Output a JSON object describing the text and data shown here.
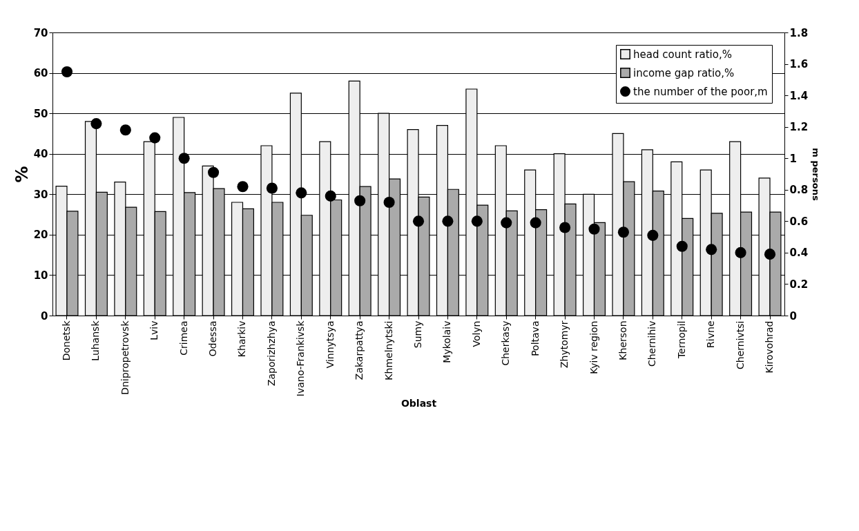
{
  "chart_data": {
    "type": "bar",
    "xlabel": "Oblast",
    "ylabel": "%",
    "y2label": "m persons",
    "categories": [
      "Donetsk",
      "Luhansk",
      "Dnipropetrovsk",
      "Lviv",
      "Crimea",
      "Odessa",
      "Kharkiv",
      "Zaporizhzhya",
      "Ivano-Frankivsk",
      "Vinnytsya",
      "Zakarpattya",
      "Khmelnytski",
      "Sumy",
      "Mykolaiv",
      "Volyn",
      "Cherkasy",
      "Poltava",
      "Zhytomyr",
      "Kyiv region",
      "Kherson",
      "Chernihiv",
      "Ternopil",
      "Rivne",
      "Chernivtsi",
      "Kirovohrad"
    ],
    "series": [
      {
        "name": "head count ratio,%",
        "color": "#eeeeee",
        "values": [
          32,
          48,
          33,
          43,
          49,
          37,
          28,
          42,
          55,
          43,
          58,
          50,
          46,
          47,
          56,
          42,
          36,
          40,
          30,
          45,
          41,
          38,
          36,
          43,
          34
        ]
      },
      {
        "name": "income gap ratio,%",
        "color": "#aaaaaa",
        "values": [
          25.8,
          30.5,
          26.8,
          25.7,
          30.4,
          31.4,
          26.4,
          28,
          24.8,
          28.6,
          31.9,
          33.8,
          29.3,
          31.2,
          27.3,
          25.9,
          26.2,
          27.6,
          23,
          33.1,
          30.8,
          24,
          25.3,
          25.6,
          25.6
        ]
      },
      {
        "name": "the number of the poor,m",
        "type": "scatter",
        "axis": "y2",
        "color": "#000000",
        "values": [
          1.55,
          1.22,
          1.18,
          1.13,
          1.0,
          0.91,
          0.82,
          0.81,
          0.78,
          0.76,
          0.73,
          0.72,
          0.6,
          0.6,
          0.6,
          0.59,
          0.59,
          0.56,
          0.55,
          0.53,
          0.51,
          0.44,
          0.42,
          0.4,
          0.39
        ]
      }
    ],
    "ylim": [
      0,
      70
    ],
    "yticks": [
      0,
      10,
      20,
      30,
      40,
      50,
      60,
      70
    ],
    "y2lim": [
      0,
      1.8
    ],
    "y2ticks": [
      0,
      0.2,
      0.4,
      0.6,
      0.8,
      1,
      1.2,
      1.4,
      1.6,
      1.8
    ],
    "grid": "y",
    "legend": "top right",
    "marker": "circle"
  }
}
